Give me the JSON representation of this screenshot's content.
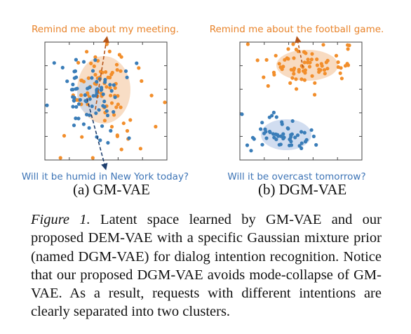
{
  "panels": [
    {
      "id": "a",
      "label": "(a) GM-VAE",
      "top_text": "Remind me about my meeting.",
      "bottom_text": "Will it be humid in New York today?"
    },
    {
      "id": "b",
      "label": "(b) DGM-VAE",
      "top_text": "Remind me about the football game.",
      "bottom_text": "Will it be overcast tomorrow?"
    }
  ],
  "colors": {
    "orange": "#f28e2b",
    "blue": "#3a7db8",
    "orange_text": "#e8832a",
    "blue_text": "#3d74b6",
    "orange_ellipse": "#f6d2b2",
    "blue_ellipse": "#c5d5ec"
  },
  "caption": {
    "lead": "Figure 1.",
    "body": " Latent space learned by GM-VAE and our proposed DEM-VAE with a specific Gaussian mixture prior (named DGM-VAE) for dialog intention recognition. Notice that our proposed DGM-VAE avoids mode-collapse of GM-VAE. As a result, requests with different intentions are clearly separated into two clusters."
  }
}
